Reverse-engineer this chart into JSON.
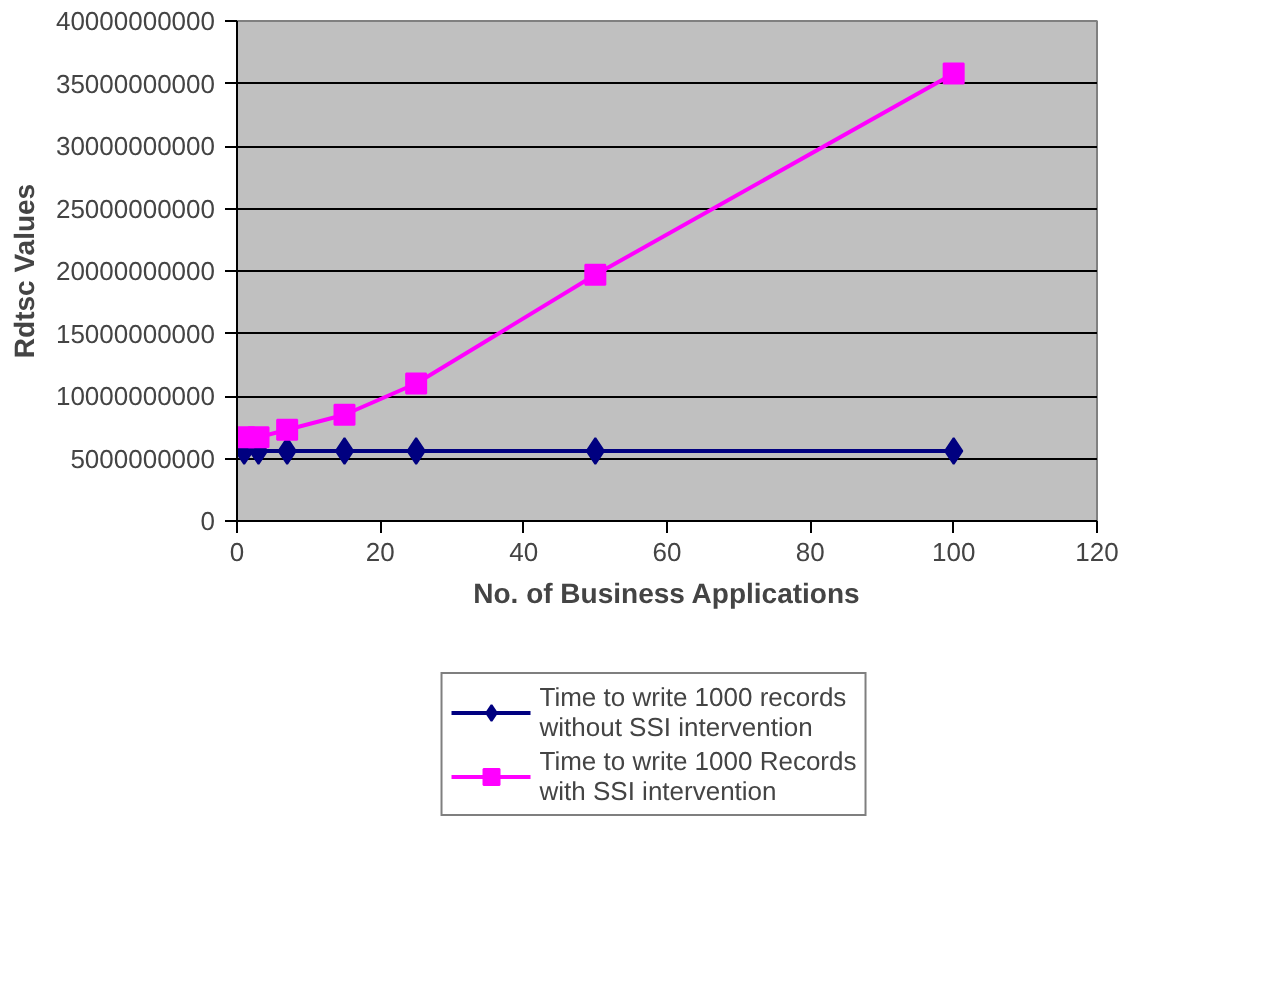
{
  "chart_data": {
    "type": "line",
    "xlabel": "No. of Business Applications",
    "ylabel": "Rdtsc Values",
    "xlim": [
      0,
      120
    ],
    "xticks": [
      0,
      20,
      40,
      60,
      80,
      100,
      120
    ],
    "ylim": [
      0,
      40000000000
    ],
    "yticks": [
      0,
      5000000000,
      10000000000,
      15000000000,
      20000000000,
      25000000000,
      30000000000,
      35000000000,
      40000000000
    ],
    "grid": "y",
    "legend": "bottom",
    "line_style": "solid",
    "series": [
      {
        "name": "Time to write 1000 records\nwithout SSI intervention",
        "color": "#000080",
        "marker": "diamond",
        "x": [
          1,
          3,
          7,
          15,
          25,
          50,
          100
        ],
        "values": [
          5600000000,
          5600000000,
          5600000000,
          5600000000,
          5600000000,
          5600000000,
          5600000000
        ]
      },
      {
        "name": "Time to write 1000 Records\nwith SSI intervention",
        "color": "#ff00ff",
        "marker": "square",
        "x": [
          1,
          3,
          7,
          15,
          25,
          50,
          100
        ],
        "values": [
          6700000000,
          6700000000,
          7300000000,
          8500000000,
          11000000000,
          19700000000,
          35800000000
        ]
      }
    ]
  }
}
